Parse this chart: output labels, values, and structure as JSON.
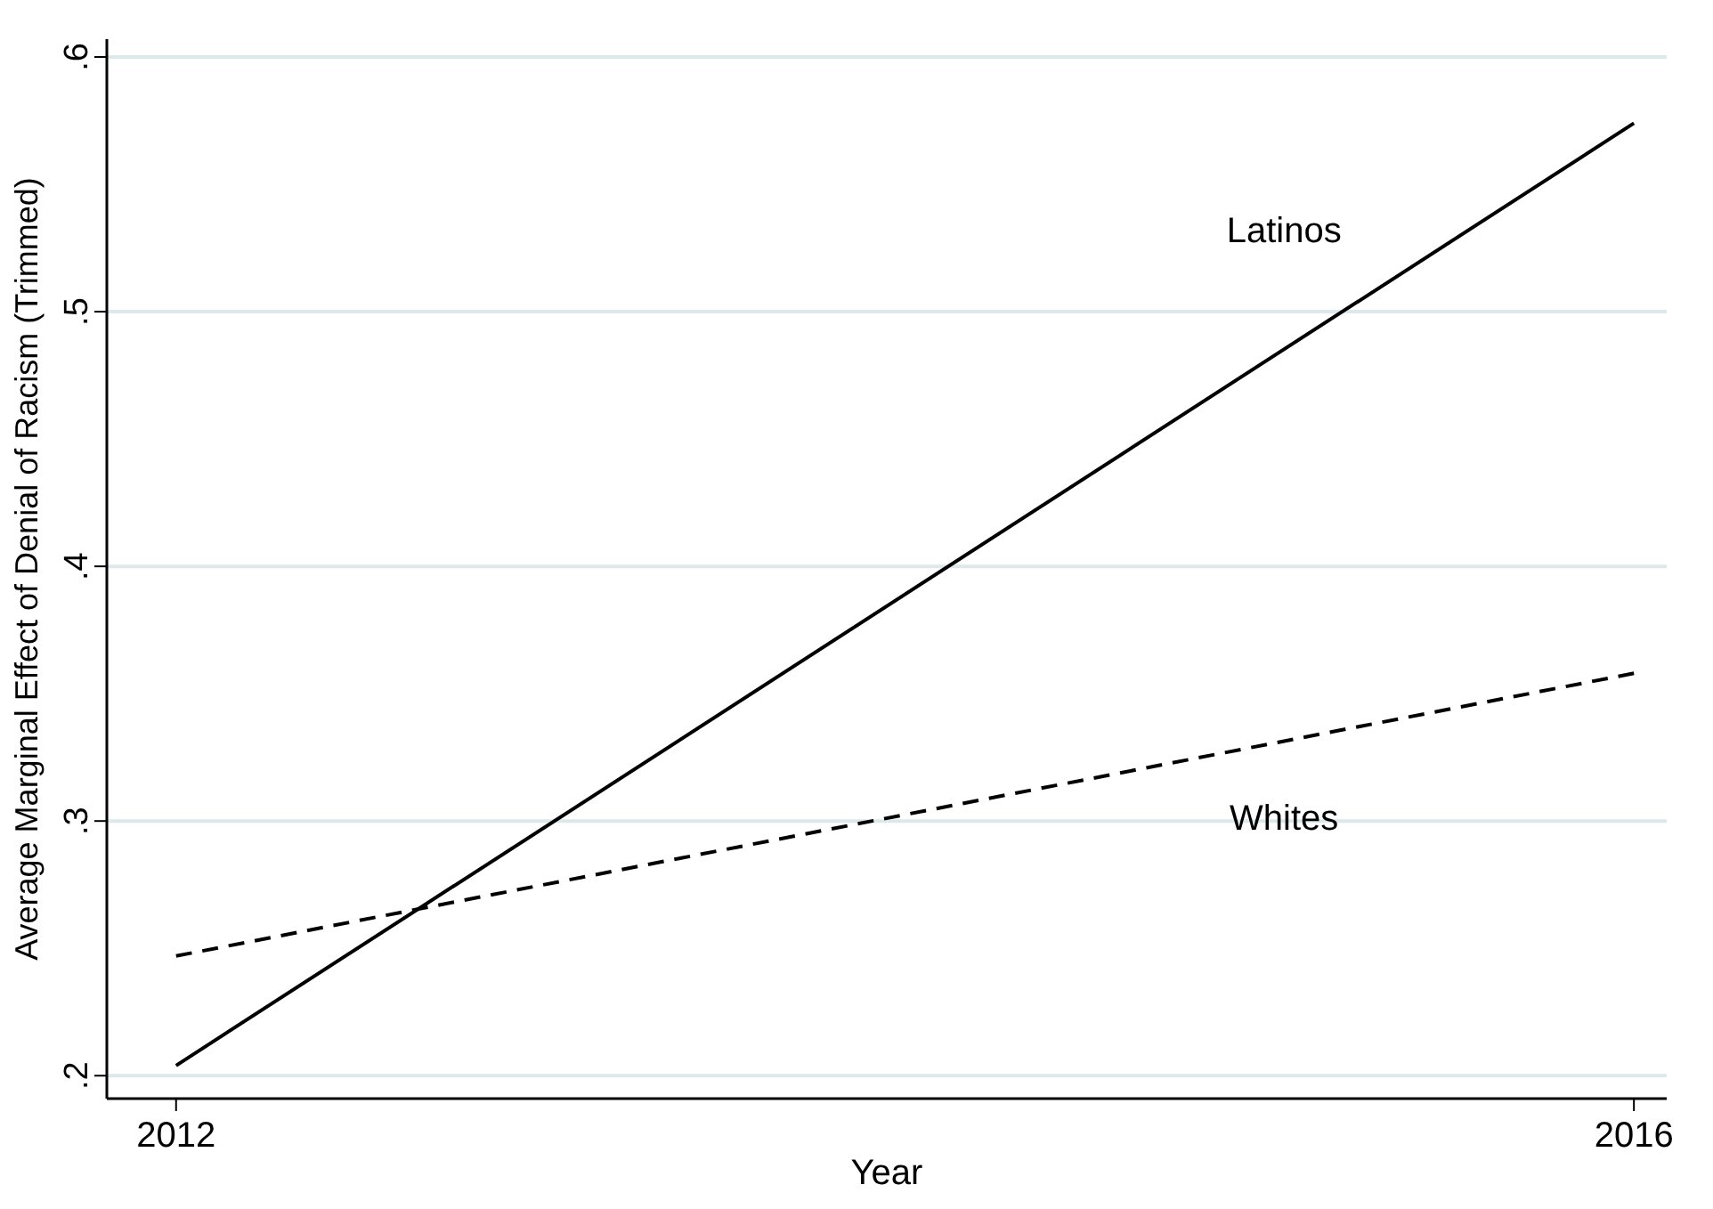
{
  "chart_data": {
    "type": "line",
    "xlabel": "Year",
    "ylabel": "Average Marginal Effect of Denial of Racism (Trimmed)",
    "x": [
      2012,
      2016
    ],
    "series": [
      {
        "name": "Latinos",
        "color": "#000000",
        "line_style": "solid",
        "values": [
          0.204,
          0.574
        ]
      },
      {
        "name": "Whites",
        "color": "#000000",
        "line_style": "dashed",
        "values": [
          0.247,
          0.358
        ]
      }
    ],
    "xlim": [
      2011.81,
      2016.09
    ],
    "xticks": [
      2012,
      2016
    ],
    "ylim": [
      0.191,
      0.607
    ],
    "yticks": [
      {
        "value": 0.2,
        "label": ".2"
      },
      {
        "value": 0.3,
        "label": ".3"
      },
      {
        "value": 0.4,
        "label": ".4"
      },
      {
        "value": 0.5,
        "label": ".5"
      },
      {
        "value": 0.6,
        "label": ".6"
      }
    ],
    "grid": "y",
    "marker": "none"
  }
}
